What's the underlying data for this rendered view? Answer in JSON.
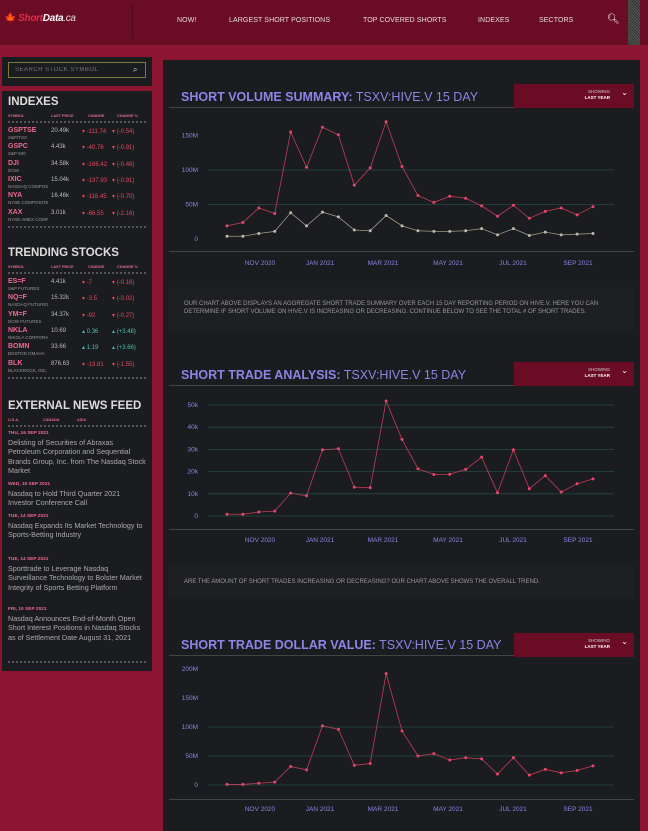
{
  "header": {
    "logo": {
      "a": "Short",
      "b": "Data",
      "c": ".ca"
    },
    "nav": [
      "NOW!",
      "LARGEST SHORT POSITIONS",
      "TOP COVERED SHORTS",
      "INDEXES",
      "SECTORS"
    ]
  },
  "search": {
    "placeholder": "SEARCH STOCK SYMBOL"
  },
  "indexes": {
    "title": "INDEXES",
    "columns": [
      "SYMBOL",
      "LAST PRICE",
      "CHANGE",
      "CHANGE %"
    ],
    "rows": [
      {
        "sym": "GSPTSE",
        "name": "S&P/TSX",
        "last": "20.49k",
        "change": "-111.74",
        "pct": "(-0.54)",
        "dir": "down"
      },
      {
        "sym": "GSPC",
        "name": "S&P 500",
        "last": "4.43k",
        "change": "-40.76",
        "pct": "(-0.91)",
        "dir": "down"
      },
      {
        "sym": "DJI",
        "name": "DOW",
        "last": "34.58k",
        "change": "-166.42",
        "pct": "(-0.48)",
        "dir": "down"
      },
      {
        "sym": "IXIC",
        "name": "NASDAQ COMPOSITE",
        "last": "15.04k",
        "change": "-137.93",
        "pct": "(-0.91)",
        "dir": "down"
      },
      {
        "sym": "NYA",
        "name": "NYSE COMPOSITE",
        "last": "16.46k",
        "change": "-116.45",
        "pct": "(-0.70)",
        "dir": "down"
      },
      {
        "sym": "XAX",
        "name": "NYSE AMEX COMPOSITE",
        "last": "3.01k",
        "change": "-66.55",
        "pct": "(-2.16)",
        "dir": "down"
      }
    ]
  },
  "trending": {
    "title": "TRENDING STOCKS",
    "columns": [
      "SYMBOL",
      "LAST PRICE",
      "CHANGE",
      "CHANGE %"
    ],
    "rows": [
      {
        "sym": "ES=F",
        "name": "S&P FUTURES",
        "last": "4.41k",
        "change": "-7",
        "pct": "(-0.16)",
        "dir": "down"
      },
      {
        "sym": "NQ=F",
        "name": "NASDAQ FUTURES",
        "last": "15.32k",
        "change": "-3.5",
        "pct": "(-0.02)",
        "dir": "down"
      },
      {
        "sym": "YM=F",
        "name": "DOW FUTURES",
        "last": "34.37k",
        "change": "-92",
        "pct": "(-0.27)",
        "dir": "down"
      },
      {
        "sym": "NKLA",
        "name": "NIKOLA CORPORATION",
        "last": "10.69",
        "change": "0.36",
        "pct": "(+3.48)",
        "dir": "up"
      },
      {
        "sym": "BOMN",
        "name": "BOSTON OMAHA",
        "last": "33.66",
        "change": "1.19",
        "pct": "(+3.66)",
        "dir": "up"
      },
      {
        "sym": "BLK",
        "name": "BLACKROCK, INC.",
        "last": "876.63",
        "change": "-13.81",
        "pct": "(-1.55)",
        "dir": "down"
      }
    ]
  },
  "news": {
    "title": "EXTERNAL NEWS FEED",
    "tabs": [
      "U.S.A.",
      "CANADA",
      "ASIA"
    ],
    "items": [
      {
        "date": "THU, 16 SEP 2021",
        "title": "Delisting of Securities of Abraxas Petroleum Corporation and Sequential Brands Group, Inc. from The Nasdaq Stock Market"
      },
      {
        "date": "WED, 15 SEP 2021",
        "title": "Nasdaq to Hold Third Quarter 2021 Investor Conference Call"
      },
      {
        "date": "TUE, 14 SEP 2021",
        "title": "Nasdaq Expands Its Market Technology to Sports-Betting Industry"
      },
      {
        "date": "TUE, 14 SEP 2021",
        "title": "Sporttrade to Leverage Nasdaq Surveillance Technology to Bolster Market Integrity of Sports Betting Platform"
      },
      {
        "date": "FRI, 10 SEP 2021",
        "title": "Nasdaq Announces End-of-Month Open Short Interest Positions in Nasdaq Stocks as of Settlement Date August 31, 2021"
      }
    ]
  },
  "dropdown": {
    "label": "SHOWING",
    "value": "LAST YEAR"
  },
  "descriptions": [
    "OUR CHART ABOVE DISPLAYS AN AGGREGATE SHORT TRADE SUMMARY OVER EACH 15 DAY REPORTING PERIOD ON HIVE.V. HERE YOU CAN DETERMINE IF SHORT VOLUME ON HIVE.V IS INCREASING OR DECREASING. CONTINUE BELOW TO SEE THE TOTAL # OF SHORT TRADES.",
    "ARE THE AMOUNT OF SHORT TRADES INCREASING OR DECREASING? OUR CHART ABOVE SHOWS THE OVERALL TREND."
  ],
  "colors": {
    "header": "#6a0d24",
    "background": "#8c1532",
    "series_red": "#e8456a",
    "series_gray": "#bbbbaa",
    "title": "#8d84e6"
  },
  "chart_data": [
    {
      "type": "line",
      "title_bold": "SHORT VOLUME SUMMARY:",
      "title_rest": " TSXV:HIVE.V 15 DAY",
      "xticks": [
        "NOV 2020",
        "JAN 2021",
        "MAR 2021",
        "MAY 2021",
        "JUL 2021",
        "SEP 2021"
      ],
      "yticks": [
        "0",
        "50M",
        "100M",
        "150M"
      ],
      "ytick_values": [
        0,
        50,
        100,
        150
      ],
      "ylim": [
        0,
        175
      ],
      "unit": "M",
      "series": [
        {
          "name": "short volume",
          "color": "#e8456a",
          "values": [
            19,
            24,
            45,
            37,
            155,
            104,
            162,
            151,
            78,
            103,
            170,
            105,
            63,
            53,
            62,
            59,
            48,
            33,
            49,
            30,
            40,
            45,
            35,
            47
          ]
        },
        {
          "name": "secondary",
          "color": "#bbbbaa",
          "values": [
            4,
            4,
            8,
            11,
            38,
            19,
            39,
            32,
            13,
            12,
            34,
            19,
            12,
            11,
            11,
            12,
            15,
            6,
            15,
            5,
            10,
            6,
            7,
            8
          ]
        }
      ]
    },
    {
      "type": "line",
      "title_bold": "SHORT TRADE ANALYSIS:",
      "title_rest": " TSXV:HIVE.V 15 DAY",
      "xticks": [
        "NOV 2020",
        "JAN 2021",
        "MAR 2021",
        "MAY 2021",
        "JUL 2021",
        "SEP 2021"
      ],
      "yticks": [
        "0",
        "10k",
        "20k",
        "30k",
        "40k",
        "50k"
      ],
      "ytick_values": [
        0,
        10,
        20,
        30,
        40,
        50
      ],
      "ylim": [
        0,
        55
      ],
      "unit": "k",
      "series": [
        {
          "name": "short trades",
          "color": "#e8456a",
          "values": [
            0.8,
            0.8,
            1.8,
            2.2,
            10.3,
            9.1,
            29.8,
            30.3,
            13,
            12.7,
            51.8,
            34.5,
            21.3,
            18.7,
            18.8,
            21,
            26.5,
            10.5,
            29.8,
            12.3,
            18.2,
            10.8,
            14.5,
            16.7
          ]
        }
      ]
    },
    {
      "type": "line",
      "title_bold": "SHORT TRADE DOLLAR VALUE:",
      "title_rest": " TSXV:HIVE.V 15 DAY",
      "xticks": [
        "NOV 2020",
        "JAN 2021",
        "MAR 2021",
        "MAY 2021",
        "JUL 2021",
        "SEP 2021"
      ],
      "yticks": [
        "0",
        "50M",
        "100M",
        "150M",
        "200M"
      ],
      "ytick_values": [
        0,
        50,
        100,
        150,
        200
      ],
      "ylim": [
        0,
        210
      ],
      "unit": "M",
      "series": [
        {
          "name": "dollar value",
          "color": "#e8456a",
          "values": [
            1,
            1,
            3,
            5,
            32,
            26,
            102,
            96,
            34,
            37,
            192,
            93,
            50,
            54,
            43,
            47,
            45,
            19,
            47,
            17,
            27,
            21,
            25,
            33
          ]
        }
      ]
    }
  ]
}
